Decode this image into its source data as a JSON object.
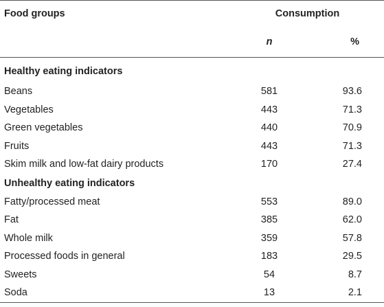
{
  "header": {
    "food_groups": "Food groups",
    "consumption": "Consumption",
    "n": "n",
    "percent": "%"
  },
  "sections": [
    {
      "title": "Healthy eating indicators",
      "rows": [
        {
          "food": "Beans",
          "n": "581",
          "pct": "93.6"
        },
        {
          "food": "Vegetables",
          "n": "443",
          "pct": "71.3"
        },
        {
          "food": "Green vegetables",
          "n": "440",
          "pct": "70.9"
        },
        {
          "food": "Fruits",
          "n": "443",
          "pct": "71.3"
        },
        {
          "food": "Skim milk and low-fat dairy products",
          "n": "170",
          "pct": "27.4"
        }
      ]
    },
    {
      "title": "Unhealthy eating indicators",
      "rows": [
        {
          "food": "Fatty/processed meat",
          "n": "553",
          "pct": "89.0"
        },
        {
          "food": "Fat",
          "n": "385",
          "pct": "62.0"
        },
        {
          "food": "Whole milk",
          "n": "359",
          "pct": "57.8"
        },
        {
          "food": "Processed foods in general",
          "n": "183",
          "pct": "29.5"
        },
        {
          "food": "Sweets",
          "n": "54",
          "pct": "8.7"
        },
        {
          "food": "Soda",
          "n": "13",
          "pct": "2.1"
        }
      ]
    }
  ]
}
